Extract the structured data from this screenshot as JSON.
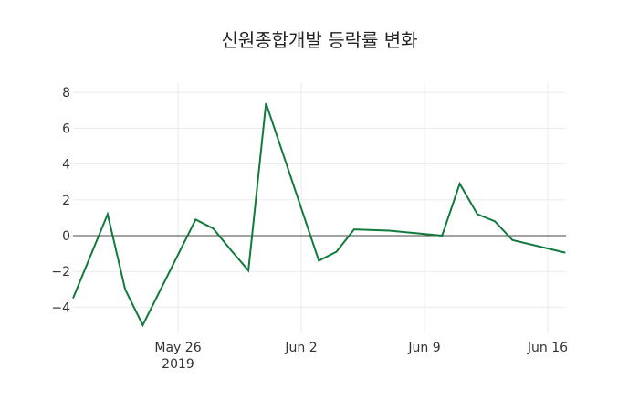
{
  "chart_data": {
    "type": "line",
    "title": "신원종합개발 등락률 변화",
    "xlabel": "",
    "ylabel": "",
    "ylim": [
      -5.3,
      8.3
    ],
    "yticks": [
      -4,
      -2,
      0,
      2,
      4,
      6,
      8
    ],
    "ytick_labels": [
      "−4",
      "−2",
      "0",
      "2",
      "4",
      "6",
      "8"
    ],
    "xticks": [
      "2019-05-26",
      "2019-06-02",
      "2019-06-09",
      "2019-06-16"
    ],
    "xtick_labels": [
      "May 26",
      "Jun 2",
      "Jun 9",
      "Jun 16"
    ],
    "xtick_sublabel": "2019",
    "grid": true,
    "legend": null,
    "series": [
      {
        "name": "등락률",
        "color": "#137a3e",
        "x": [
          "2019-05-20",
          "2019-05-22",
          "2019-05-23",
          "2019-05-24",
          "2019-05-27",
          "2019-05-28",
          "2019-05-29",
          "2019-05-30",
          "2019-05-31",
          "2019-06-03",
          "2019-06-04",
          "2019-06-05",
          "2019-06-07",
          "2019-06-10",
          "2019-06-11",
          "2019-06-12",
          "2019-06-13",
          "2019-06-14",
          "2019-06-17"
        ],
        "values": [
          -3.5,
          1.2,
          -3.0,
          -5.0,
          0.9,
          0.4,
          -0.8,
          -1.95,
          7.4,
          -1.4,
          -0.9,
          0.35,
          0.28,
          0.0,
          2.9,
          1.2,
          0.8,
          -0.25,
          -0.95
        ]
      }
    ]
  }
}
